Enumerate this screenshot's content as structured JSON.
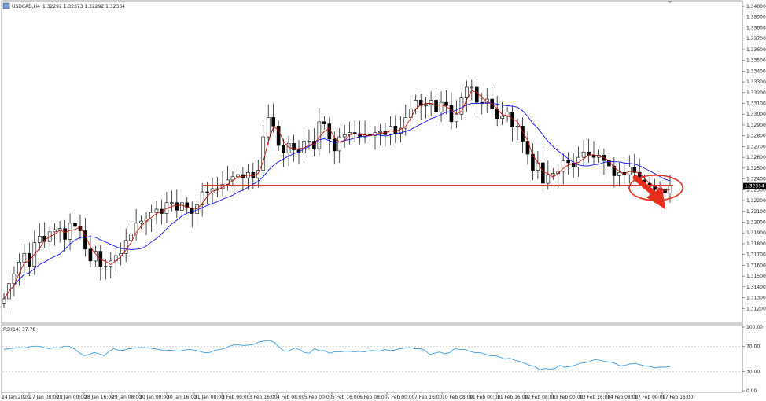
{
  "header": {
    "symbol_label": "USDCAD,H4",
    "ohlc_text": "1.32292 1.32373 1.32292 1.32334"
  },
  "colors": {
    "up_body": "#ffffff",
    "down_body": "#000000",
    "candle_outline": "#000000",
    "ma_fast": "#d01000",
    "ma_slow": "#1010ff",
    "support_line": "#e8301c",
    "rsi_line": "#3aa0e8",
    "grid_dash": "#c8c8c8",
    "arrow": "#e8301c"
  },
  "chart_data": [
    {
      "type": "candlestick",
      "symbol": "USDCAD",
      "timeframe": "H4",
      "ylim": [
        1.311,
        1.34
      ],
      "y_ticks": [
        "1.34000",
        "1.33900",
        "1.33800",
        "1.33700",
        "1.33600",
        "1.33500",
        "1.33400",
        "1.33300",
        "1.33200",
        "1.33100",
        "1.33000",
        "1.32900",
        "1.32800",
        "1.32700",
        "1.32600",
        "1.32500",
        "1.32400",
        "1.32300",
        "1.32200",
        "1.32100",
        "1.32000",
        "1.31900",
        "1.31800",
        "1.31700",
        "1.31600",
        "1.31500",
        "1.31400",
        "1.31300",
        "1.31200"
      ],
      "current_price_label": "1.32334",
      "x_ticks": [
        "24 Jan 2020",
        "27 Jan 08:00",
        "28 Jan 00:00",
        "28 Jan 16:00",
        "29 Jan 08:00",
        "30 Jan 00:00",
        "30 Jan 16:00",
        "31 Jan 08:00",
        "3 Feb 00:00",
        "3 Feb 16:00",
        "4 Feb 08:00",
        "5 Feb 00:00",
        "5 Feb 16:00",
        "6 Feb 08:00",
        "7 Feb 00:00",
        "7 Feb 16:00",
        "10 Feb 08:00",
        "11 Feb 00:00",
        "11 Feb 16:00",
        "12 Feb 08:00",
        "13 Feb 00:00",
        "13 Feb 16:00",
        "14 Feb 08:00",
        "17 Feb 00:00",
        "17 Feb 16:00"
      ],
      "close": [
        1.3129,
        1.3143,
        1.3152,
        1.3163,
        1.3171,
        1.3159,
        1.3181,
        1.3187,
        1.3182,
        1.3191,
        1.3193,
        1.3194,
        1.3184,
        1.3199,
        1.3196,
        1.3192,
        1.3175,
        1.3164,
        1.3173,
        1.3159,
        1.3159,
        1.3164,
        1.3169,
        1.3171,
        1.3183,
        1.3189,
        1.3199,
        1.3201,
        1.3203,
        1.3209,
        1.3212,
        1.3208,
        1.3218,
        1.3218,
        1.3211,
        1.3218,
        1.3213,
        1.3208,
        1.3216,
        1.3228,
        1.3227,
        1.3231,
        1.3231,
        1.3235,
        1.3239,
        1.3242,
        1.3244,
        1.3241,
        1.3246,
        1.3241,
        1.3248,
        1.3279,
        1.3297,
        1.3289,
        1.3271,
        1.3264,
        1.3273,
        1.3267,
        1.3264,
        1.3275,
        1.3275,
        1.3268,
        1.3293,
        1.3291,
        1.3277,
        1.3266,
        1.3279,
        1.3281,
        1.3283,
        1.3282,
        1.3279,
        1.3281,
        1.328,
        1.3283,
        1.3284,
        1.3281,
        1.3289,
        1.3282,
        1.3287,
        1.3297,
        1.3305,
        1.3313,
        1.3308,
        1.3309,
        1.3313,
        1.3302,
        1.3311,
        1.3308,
        1.3293,
        1.33,
        1.3315,
        1.3325,
        1.3325,
        1.3311,
        1.331,
        1.3314,
        1.3305,
        1.3296,
        1.3298,
        1.3302,
        1.3288,
        1.3289,
        1.3275,
        1.3263,
        1.3248,
        1.3255,
        1.3236,
        1.3244,
        1.3245,
        1.3247,
        1.3257,
        1.3255,
        1.3251,
        1.326,
        1.3265,
        1.3262,
        1.326,
        1.3262,
        1.3257,
        1.3252,
        1.3243,
        1.3246,
        1.3244,
        1.3251,
        1.3246,
        1.3239,
        1.3236,
        1.3233,
        1.323,
        1.323,
        1.3227,
        1.3234
      ],
      "moving_averages": [
        {
          "period_hint": "fast",
          "color": "#d01000"
        },
        {
          "period_hint": "slow",
          "color": "#1010ff"
        }
      ],
      "support_level": 1.3234,
      "annotations": [
        {
          "kind": "horizontal-line",
          "price": 1.3234
        },
        {
          "kind": "circle",
          "around": "last candles"
        },
        {
          "kind": "arrow",
          "direction": "down-right"
        }
      ]
    },
    {
      "type": "line",
      "indicator_label": "RSI(14) 37.78",
      "ylim": [
        0,
        100
      ],
      "y_ticks": [
        "100.00",
        "70.00",
        "30.00",
        "0.00"
      ],
      "levels": [
        70,
        30
      ],
      "values": [
        65,
        66,
        67,
        68,
        67,
        69,
        70,
        70,
        68,
        66,
        68,
        67,
        70,
        70,
        66,
        60,
        55,
        57,
        60,
        58,
        55,
        62,
        66,
        63,
        64,
        66,
        67,
        68,
        68,
        67,
        66,
        65,
        63,
        64,
        63,
        62,
        64,
        65,
        64,
        62,
        60,
        60,
        63,
        65,
        66,
        70,
        72,
        72,
        71,
        72,
        73,
        77,
        78,
        79,
        76,
        68,
        62,
        63,
        67,
        65,
        60,
        59,
        66,
        63,
        63,
        59,
        61,
        61,
        62,
        62,
        61,
        62,
        61,
        63,
        63,
        62,
        65,
        63,
        64,
        66,
        67,
        68,
        66,
        66,
        64,
        57,
        59,
        61,
        58,
        60,
        66,
        65,
        65,
        62,
        60,
        60,
        58,
        55,
        55,
        53,
        50,
        51,
        48,
        46,
        43,
        40,
        38,
        33,
        35,
        34,
        35,
        40,
        37,
        38,
        40,
        43,
        44,
        46,
        49,
        48,
        46,
        45,
        43,
        39,
        40,
        42,
        43,
        41,
        39,
        38,
        36,
        37,
        37,
        38
      ]
    }
  ]
}
